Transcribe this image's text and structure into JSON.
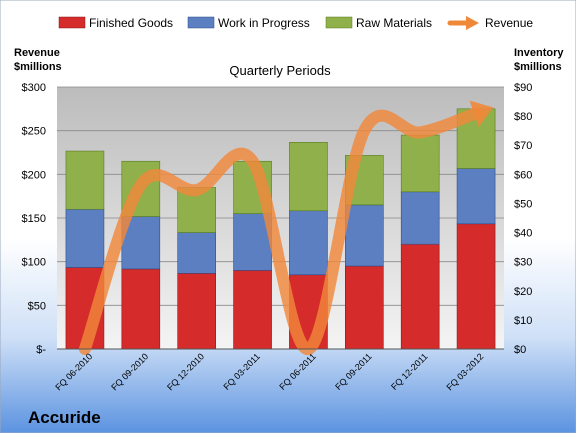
{
  "company": "Accuride",
  "chart_data": {
    "type": "bar",
    "stacked": true,
    "subtitle": "Quarterly Periods",
    "categories": [
      "FQ 06-2010",
      "FQ 09-2010",
      "FQ 12-2010",
      "FQ 03-2011",
      "FQ 06-2011",
      "FQ 09-2011",
      "FQ 12-2011",
      "FQ 03-2012"
    ],
    "left_axis": {
      "label_line1": "Revenue",
      "label_line2": "$millions",
      "range": [
        0,
        300
      ],
      "ticks": [
        {
          "value": 300,
          "label": "$300"
        },
        {
          "value": 250,
          "label": "$250"
        },
        {
          "value": 200,
          "label": "$200"
        },
        {
          "value": 150,
          "label": "$150"
        },
        {
          "value": 100,
          "label": "$100"
        },
        {
          "value": 50,
          "label": "$50"
        },
        {
          "value": 0,
          "label": "$-"
        }
      ]
    },
    "right_axis": {
      "label_line1": "Inventory",
      "label_line2": "$millions",
      "range": [
        0,
        90
      ],
      "ticks": [
        {
          "value": 90,
          "label": "$90"
        },
        {
          "value": 80,
          "label": "$80"
        },
        {
          "value": 70,
          "label": "$70"
        },
        {
          "value": 60,
          "label": "$60"
        },
        {
          "value": 50,
          "label": "$50"
        },
        {
          "value": 40,
          "label": "$40"
        },
        {
          "value": 30,
          "label": "$30"
        },
        {
          "value": 20,
          "label": "$20"
        },
        {
          "value": 10,
          "label": "$10"
        },
        {
          "value": 0,
          "label": "$0"
        }
      ]
    },
    "series": [
      {
        "name": "Finished Goods",
        "axis": "right",
        "color": "#d52b2b",
        "values": [
          28,
          27.5,
          26,
          27,
          25.5,
          28.5,
          36,
          43
        ]
      },
      {
        "name": "Work in Progress",
        "axis": "right",
        "color": "#5b7fc0",
        "values": [
          20,
          18,
          14,
          19.5,
          22,
          21,
          18,
          19
        ]
      },
      {
        "name": "Raw Materials",
        "axis": "right",
        "color": "#8fb04a",
        "values": [
          20,
          19,
          15.5,
          18,
          23.5,
          17,
          19.5,
          20.5
        ]
      },
      {
        "name": "Revenue",
        "axis": "left",
        "type": "line",
        "color": "#f0883a",
        "values": [
          0,
          188,
          182,
          215,
          0,
          250,
          248,
          270
        ]
      }
    ],
    "grid": true,
    "legend_position": "top"
  }
}
